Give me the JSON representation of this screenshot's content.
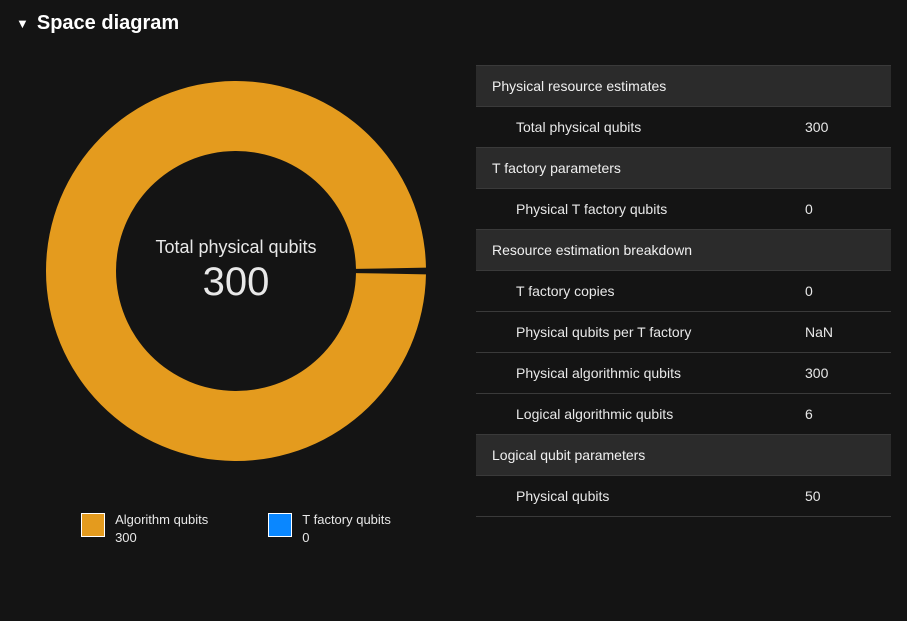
{
  "title": "Space diagram",
  "donut": {
    "type": "donut",
    "center_label": "Total physical qubits",
    "center_value": "300",
    "outer_radius": 190,
    "inner_radius": 120,
    "gap_degrees": 2,
    "background": "#141414",
    "series": [
      {
        "name": "Algorithm qubits",
        "value": 300,
        "color": "#e49b1e",
        "swatch_fill": "#e49b1e"
      },
      {
        "name": "T factory qubits",
        "value": 0,
        "color": "#0a87ff",
        "swatch_fill": "#0a87ff"
      }
    ],
    "center_label_fontsize": 18,
    "center_value_fontsize": 40,
    "center_text_color": "#e8e8e8"
  },
  "legend": [
    {
      "label": "Algorithm qubits",
      "value": "300",
      "color": "#e49b1e",
      "border": "#ffffff"
    },
    {
      "label": "T factory qubits",
      "value": "0",
      "color": "#0a87ff",
      "border": "#ffffff"
    }
  ],
  "panel": {
    "section_bg": "#2b2b2b",
    "border_color": "#3a3a3a",
    "sections": [
      {
        "title": "Physical resource estimates",
        "rows": [
          {
            "label": "Total physical qubits",
            "value": "300"
          }
        ]
      },
      {
        "title": "T factory parameters",
        "rows": [
          {
            "label": "Physical T factory qubits",
            "value": "0"
          }
        ]
      },
      {
        "title": "Resource estimation breakdown",
        "rows": [
          {
            "label": "T factory copies",
            "value": "0"
          },
          {
            "label": "Physical qubits per T factory",
            "value": "NaN"
          },
          {
            "label": "Physical algorithmic qubits",
            "value": "300"
          },
          {
            "label": "Logical algorithmic qubits",
            "value": "6"
          }
        ]
      },
      {
        "title": "Logical qubit parameters",
        "rows": [
          {
            "label": "Physical qubits",
            "value": "50"
          }
        ]
      }
    ]
  }
}
